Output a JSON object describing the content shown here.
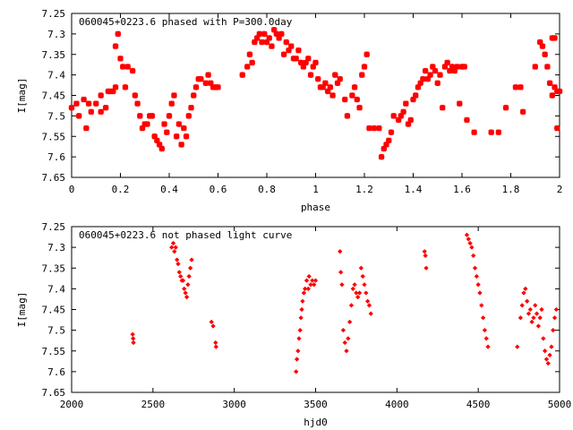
{
  "chart_data": [
    {
      "type": "scatter",
      "title": "060045+0223.6 phased with P=300.0day",
      "xlabel": "phase",
      "ylabel": "I[mag]",
      "xlim": [
        0,
        2
      ],
      "ylim": [
        7.65,
        7.25
      ],
      "y_inverted": true,
      "xticks": [
        "0",
        "0.2",
        "0.4",
        "0.6",
        "0.8",
        "1",
        "1.2",
        "1.4",
        "1.6",
        "1.8",
        "2"
      ],
      "yticks": [
        "7.25",
        "7.3",
        "7.35",
        "7.4",
        "7.45",
        "7.5",
        "7.55",
        "7.6",
        "7.65"
      ],
      "marker": "star",
      "color": "#ff0000",
      "points": [
        [
          0.0,
          7.48
        ],
        [
          0.02,
          7.47
        ],
        [
          0.03,
          7.5
        ],
        [
          0.05,
          7.46
        ],
        [
          0.06,
          7.53
        ],
        [
          0.07,
          7.47
        ],
        [
          0.08,
          7.49
        ],
        [
          0.1,
          7.47
        ],
        [
          0.12,
          7.45
        ],
        [
          0.12,
          7.49
        ],
        [
          0.14,
          7.48
        ],
        [
          0.15,
          7.44
        ],
        [
          0.16,
          7.44
        ],
        [
          0.17,
          7.44
        ],
        [
          0.18,
          7.43
        ],
        [
          0.18,
          7.33
        ],
        [
          0.19,
          7.3
        ],
        [
          0.2,
          7.36
        ],
        [
          0.21,
          7.38
        ],
        [
          0.22,
          7.43
        ],
        [
          0.23,
          7.38
        ],
        [
          0.25,
          7.39
        ],
        [
          0.26,
          7.45
        ],
        [
          0.27,
          7.47
        ],
        [
          0.28,
          7.5
        ],
        [
          0.29,
          7.53
        ],
        [
          0.3,
          7.52
        ],
        [
          0.31,
          7.52
        ],
        [
          0.32,
          7.5
        ],
        [
          0.33,
          7.5
        ],
        [
          0.34,
          7.55
        ],
        [
          0.35,
          7.56
        ],
        [
          0.36,
          7.57
        ],
        [
          0.37,
          7.58
        ],
        [
          0.38,
          7.52
        ],
        [
          0.39,
          7.54
        ],
        [
          0.4,
          7.5
        ],
        [
          0.41,
          7.47
        ],
        [
          0.42,
          7.45
        ],
        [
          0.43,
          7.55
        ],
        [
          0.44,
          7.52
        ],
        [
          0.45,
          7.57
        ],
        [
          0.46,
          7.53
        ],
        [
          0.47,
          7.55
        ],
        [
          0.48,
          7.5
        ],
        [
          0.49,
          7.48
        ],
        [
          0.5,
          7.45
        ],
        [
          0.51,
          7.43
        ],
        [
          0.52,
          7.41
        ],
        [
          0.53,
          7.41
        ],
        [
          0.55,
          7.42
        ],
        [
          0.56,
          7.4
        ],
        [
          0.57,
          7.42
        ],
        [
          0.58,
          7.43
        ],
        [
          0.59,
          7.43
        ],
        [
          0.6,
          7.43
        ],
        [
          0.7,
          7.4
        ],
        [
          0.72,
          7.38
        ],
        [
          0.73,
          7.35
        ],
        [
          0.74,
          7.37
        ],
        [
          0.75,
          7.32
        ],
        [
          0.76,
          7.31
        ],
        [
          0.77,
          7.3
        ],
        [
          0.78,
          7.32
        ],
        [
          0.79,
          7.3
        ],
        [
          0.8,
          7.32
        ],
        [
          0.81,
          7.31
        ],
        [
          0.82,
          7.33
        ],
        [
          0.83,
          7.29
        ],
        [
          0.84,
          7.3
        ],
        [
          0.85,
          7.31
        ],
        [
          0.86,
          7.3
        ],
        [
          0.87,
          7.35
        ],
        [
          0.88,
          7.32
        ],
        [
          0.89,
          7.34
        ],
        [
          0.9,
          7.33
        ],
        [
          0.91,
          7.36
        ],
        [
          0.92,
          7.36
        ],
        [
          0.93,
          7.34
        ],
        [
          0.94,
          7.37
        ],
        [
          0.95,
          7.38
        ],
        [
          0.96,
          7.37
        ],
        [
          0.97,
          7.36
        ],
        [
          0.98,
          7.4
        ],
        [
          0.99,
          7.38
        ],
        [
          1.0,
          7.37
        ],
        [
          1.01,
          7.41
        ],
        [
          1.02,
          7.43
        ],
        [
          1.03,
          7.43
        ],
        [
          1.04,
          7.42
        ],
        [
          1.05,
          7.44
        ],
        [
          1.06,
          7.43
        ],
        [
          1.07,
          7.45
        ],
        [
          1.08,
          7.4
        ],
        [
          1.09,
          7.42
        ],
        [
          1.1,
          7.41
        ],
        [
          1.12,
          7.46
        ],
        [
          1.13,
          7.5
        ],
        [
          1.15,
          7.45
        ],
        [
          1.16,
          7.43
        ],
        [
          1.17,
          7.46
        ],
        [
          1.18,
          7.48
        ],
        [
          1.19,
          7.4
        ],
        [
          1.2,
          7.38
        ],
        [
          1.21,
          7.35
        ],
        [
          1.22,
          7.53
        ],
        [
          1.24,
          7.53
        ],
        [
          1.26,
          7.53
        ],
        [
          1.27,
          7.6
        ],
        [
          1.28,
          7.58
        ],
        [
          1.29,
          7.57
        ],
        [
          1.3,
          7.56
        ],
        [
          1.31,
          7.54
        ],
        [
          1.32,
          7.5
        ],
        [
          1.34,
          7.51
        ],
        [
          1.35,
          7.5
        ],
        [
          1.36,
          7.49
        ],
        [
          1.37,
          7.47
        ],
        [
          1.38,
          7.52
        ],
        [
          1.39,
          7.51
        ],
        [
          1.4,
          7.46
        ],
        [
          1.41,
          7.45
        ],
        [
          1.42,
          7.43
        ],
        [
          1.43,
          7.42
        ],
        [
          1.44,
          7.41
        ],
        [
          1.45,
          7.39
        ],
        [
          1.46,
          7.41
        ],
        [
          1.47,
          7.4
        ],
        [
          1.48,
          7.38
        ],
        [
          1.49,
          7.39
        ],
        [
          1.5,
          7.42
        ],
        [
          1.51,
          7.4
        ],
        [
          1.52,
          7.48
        ],
        [
          1.53,
          7.38
        ],
        [
          1.54,
          7.37
        ],
        [
          1.55,
          7.39
        ],
        [
          1.56,
          7.38
        ],
        [
          1.57,
          7.39
        ],
        [
          1.58,
          7.38
        ],
        [
          1.59,
          7.47
        ],
        [
          1.6,
          7.38
        ],
        [
          1.61,
          7.38
        ],
        [
          1.62,
          7.51
        ],
        [
          1.65,
          7.54
        ],
        [
          1.72,
          7.54
        ],
        [
          1.75,
          7.54
        ],
        [
          1.78,
          7.48
        ],
        [
          1.82,
          7.43
        ],
        [
          1.84,
          7.43
        ],
        [
          1.85,
          7.49
        ],
        [
          1.9,
          7.38
        ],
        [
          1.92,
          7.32
        ],
        [
          1.93,
          7.33
        ],
        [
          1.94,
          7.35
        ],
        [
          1.95,
          7.38
        ],
        [
          1.96,
          7.42
        ],
        [
          1.97,
          7.31
        ],
        [
          1.97,
          7.45
        ],
        [
          1.98,
          7.31
        ],
        [
          1.98,
          7.43
        ],
        [
          1.99,
          7.44
        ],
        [
          1.99,
          7.53
        ],
        [
          2.0,
          7.44
        ]
      ]
    },
    {
      "type": "scatter",
      "title": "060045+0223.6 not phased light curve",
      "xlabel": "hjd0",
      "ylabel": "I[mag]",
      "xlim": [
        2000,
        5000
      ],
      "ylim": [
        7.65,
        7.25
      ],
      "y_inverted": true,
      "xticks": [
        "2000",
        "2500",
        "3000",
        "3500",
        "4000",
        "4500",
        "5000"
      ],
      "yticks": [
        "7.25",
        "7.3",
        "7.35",
        "7.4",
        "7.45",
        "7.5",
        "7.55",
        "7.6",
        "7.65"
      ],
      "marker": "diamond",
      "color": "#ff0000",
      "points": [
        [
          2375,
          7.51
        ],
        [
          2378,
          7.52
        ],
        [
          2380,
          7.53
        ],
        [
          2615,
          7.3
        ],
        [
          2625,
          7.29
        ],
        [
          2632,
          7.31
        ],
        [
          2640,
          7.3
        ],
        [
          2648,
          7.33
        ],
        [
          2655,
          7.34
        ],
        [
          2662,
          7.36
        ],
        [
          2670,
          7.37
        ],
        [
          2678,
          7.38
        ],
        [
          2685,
          7.38
        ],
        [
          2692,
          7.4
        ],
        [
          2700,
          7.41
        ],
        [
          2708,
          7.42
        ],
        [
          2715,
          7.39
        ],
        [
          2722,
          7.37
        ],
        [
          2730,
          7.35
        ],
        [
          2738,
          7.33
        ],
        [
          2860,
          7.48
        ],
        [
          2870,
          7.49
        ],
        [
          2885,
          7.53
        ],
        [
          2888,
          7.54
        ],
        [
          3380,
          7.6
        ],
        [
          3385,
          7.57
        ],
        [
          3392,
          7.55
        ],
        [
          3398,
          7.52
        ],
        [
          3405,
          7.5
        ],
        [
          3410,
          7.47
        ],
        [
          3415,
          7.45
        ],
        [
          3420,
          7.43
        ],
        [
          3428,
          7.41
        ],
        [
          3435,
          7.4
        ],
        [
          3445,
          7.38
        ],
        [
          3455,
          7.4
        ],
        [
          3460,
          7.37
        ],
        [
          3470,
          7.39
        ],
        [
          3480,
          7.38
        ],
        [
          3490,
          7.39
        ],
        [
          3500,
          7.38
        ],
        [
          3650,
          7.31
        ],
        [
          3655,
          7.36
        ],
        [
          3662,
          7.39
        ],
        [
          3670,
          7.5
        ],
        [
          3680,
          7.53
        ],
        [
          3690,
          7.55
        ],
        [
          3700,
          7.52
        ],
        [
          3710,
          7.48
        ],
        [
          3720,
          7.44
        ],
        [
          3730,
          7.4
        ],
        [
          3740,
          7.39
        ],
        [
          3750,
          7.41
        ],
        [
          3760,
          7.42
        ],
        [
          3770,
          7.41
        ],
        [
          3780,
          7.35
        ],
        [
          3790,
          7.37
        ],
        [
          3800,
          7.39
        ],
        [
          3810,
          7.41
        ],
        [
          3820,
          7.43
        ],
        [
          3830,
          7.44
        ],
        [
          3840,
          7.46
        ],
        [
          4170,
          7.31
        ],
        [
          4175,
          7.32
        ],
        [
          4180,
          7.35
        ],
        [
          4430,
          7.27
        ],
        [
          4440,
          7.28
        ],
        [
          4450,
          7.29
        ],
        [
          4460,
          7.3
        ],
        [
          4470,
          7.32
        ],
        [
          4480,
          7.35
        ],
        [
          4490,
          7.37
        ],
        [
          4500,
          7.39
        ],
        [
          4510,
          7.41
        ],
        [
          4520,
          7.44
        ],
        [
          4530,
          7.47
        ],
        [
          4540,
          7.5
        ],
        [
          4550,
          7.52
        ],
        [
          4560,
          7.54
        ],
        [
          4740,
          7.54
        ],
        [
          4760,
          7.47
        ],
        [
          4770,
          7.44
        ],
        [
          4780,
          7.41
        ],
        [
          4790,
          7.4
        ],
        [
          4800,
          7.43
        ],
        [
          4810,
          7.46
        ],
        [
          4820,
          7.45
        ],
        [
          4830,
          7.48
        ],
        [
          4840,
          7.47
        ],
        [
          4850,
          7.44
        ],
        [
          4860,
          7.46
        ],
        [
          4870,
          7.49
        ],
        [
          4880,
          7.47
        ],
        [
          4890,
          7.45
        ],
        [
          4900,
          7.52
        ],
        [
          4910,
          7.55
        ],
        [
          4920,
          7.57
        ],
        [
          4930,
          7.58
        ],
        [
          4940,
          7.56
        ],
        [
          4950,
          7.54
        ],
        [
          4960,
          7.5
        ],
        [
          4970,
          7.47
        ],
        [
          4980,
          7.45
        ]
      ]
    }
  ]
}
